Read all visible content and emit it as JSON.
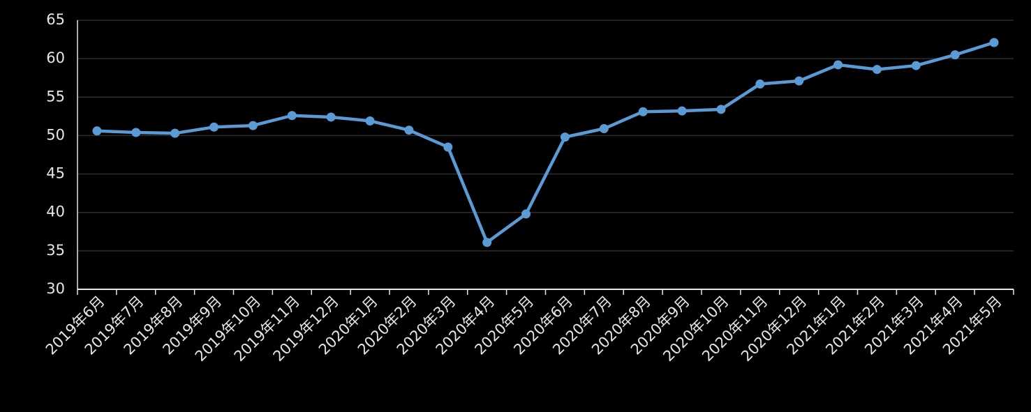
{
  "chart_data": {
    "type": "line",
    "categories": [
      "2019年6月",
      "2019年7月",
      "2019年8月",
      "2019年9月",
      "2019年10月",
      "2019年11月",
      "2019年12月",
      "2020年1月",
      "2020年2月",
      "2020年3月",
      "2020年4月",
      "2020年5月",
      "2020年6月",
      "2020年7月",
      "2020年8月",
      "2020年9月",
      "2020年10月",
      "2020年11月",
      "2020年12月",
      "2021年1月",
      "2021年2月",
      "2021年3月",
      "2021年4月",
      "2021年5月"
    ],
    "series": [
      {
        "color": "#5b9bd5",
        "values": [
          50.6,
          50.4,
          50.3,
          51.1,
          51.3,
          52.6,
          52.4,
          51.9,
          50.7,
          48.5,
          36.1,
          39.8,
          49.8,
          50.9,
          53.1,
          53.2,
          53.4,
          56.7,
          57.1,
          59.2,
          58.6,
          59.1,
          60.5,
          62.1
        ]
      }
    ],
    "ylim": [
      30,
      65
    ],
    "yticks": [
      30,
      35,
      40,
      45,
      50,
      55,
      60,
      65
    ],
    "grid": true
  }
}
